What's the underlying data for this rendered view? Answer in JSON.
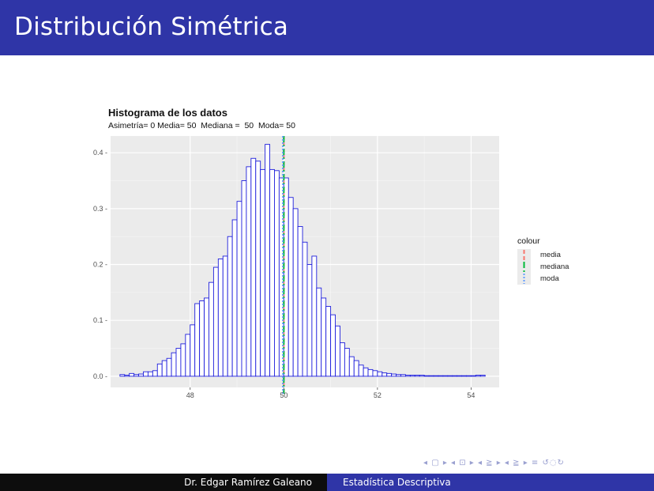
{
  "slide": {
    "title": "Distribución Simétrica"
  },
  "footer": {
    "author": "Dr. Edgar Ramírez Galeano",
    "course": "Estadística Descriptiva"
  },
  "nav": {
    "symbols": "◂ ▢ ▸ ◂ ⊡ ▸ ◂ ≧ ▸ ◂ ≧ ▸   ≡   ↺◌↻"
  },
  "colors": {
    "title_bar": "#2f35a7",
    "bar_stroke": "#1f1fdc",
    "panel_bg": "#ebebeb",
    "media": "#f8766d",
    "mediana": "#00ba38",
    "moda": "#619cff"
  },
  "chart_data": {
    "type": "bar",
    "title": "Histograma de los datos",
    "subtitle": "Asimetría= 0 Media= 50  Mediana =  50  Moda= 50",
    "xlabel": "",
    "ylabel": "",
    "xlim": [
      46.3,
      54.6
    ],
    "ylim": [
      -0.02,
      0.43
    ],
    "x_ticks": [
      48,
      50,
      52,
      54
    ],
    "y_ticks": [
      0.0,
      0.1,
      0.2,
      0.3,
      0.4
    ],
    "x_tick_labels": [
      "48",
      "50",
      "52",
      "54"
    ],
    "y_tick_labels": [
      "0.0 -",
      "0.1 -",
      "0.2 -",
      "0.3 -",
      "0.4 -"
    ],
    "grid": true,
    "bin_start": 46.5,
    "bin_width": 0.1,
    "values": [
      0.003,
      0.002,
      0.005,
      0.003,
      0.004,
      0.008,
      0.008,
      0.01,
      0.022,
      0.028,
      0.032,
      0.042,
      0.05,
      0.058,
      0.075,
      0.092,
      0.13,
      0.135,
      0.14,
      0.168,
      0.195,
      0.21,
      0.215,
      0.25,
      0.28,
      0.313,
      0.35,
      0.375,
      0.39,
      0.385,
      0.37,
      0.415,
      0.37,
      0.368,
      0.355,
      0.355,
      0.32,
      0.3,
      0.268,
      0.24,
      0.2,
      0.215,
      0.158,
      0.14,
      0.125,
      0.11,
      0.09,
      0.06,
      0.05,
      0.035,
      0.028,
      0.02,
      0.015,
      0.012,
      0.01,
      0.008,
      0.006,
      0.005,
      0.004,
      0.003,
      0.003,
      0.002,
      0.002,
      0.002,
      0.002,
      0.001,
      0.001,
      0.001,
      0.001,
      0.001,
      0.001,
      0.001,
      0.001,
      0.001,
      0.001,
      0.001,
      0.002,
      0.002
    ],
    "vlines": [
      {
        "name": "media",
        "x": 50.0
      },
      {
        "name": "mediana",
        "x": 50.0
      },
      {
        "name": "moda",
        "x": 49.98
      }
    ],
    "legend": {
      "title": "colour",
      "entries": [
        "media",
        "mediana",
        "moda"
      ],
      "placement": "right"
    }
  }
}
